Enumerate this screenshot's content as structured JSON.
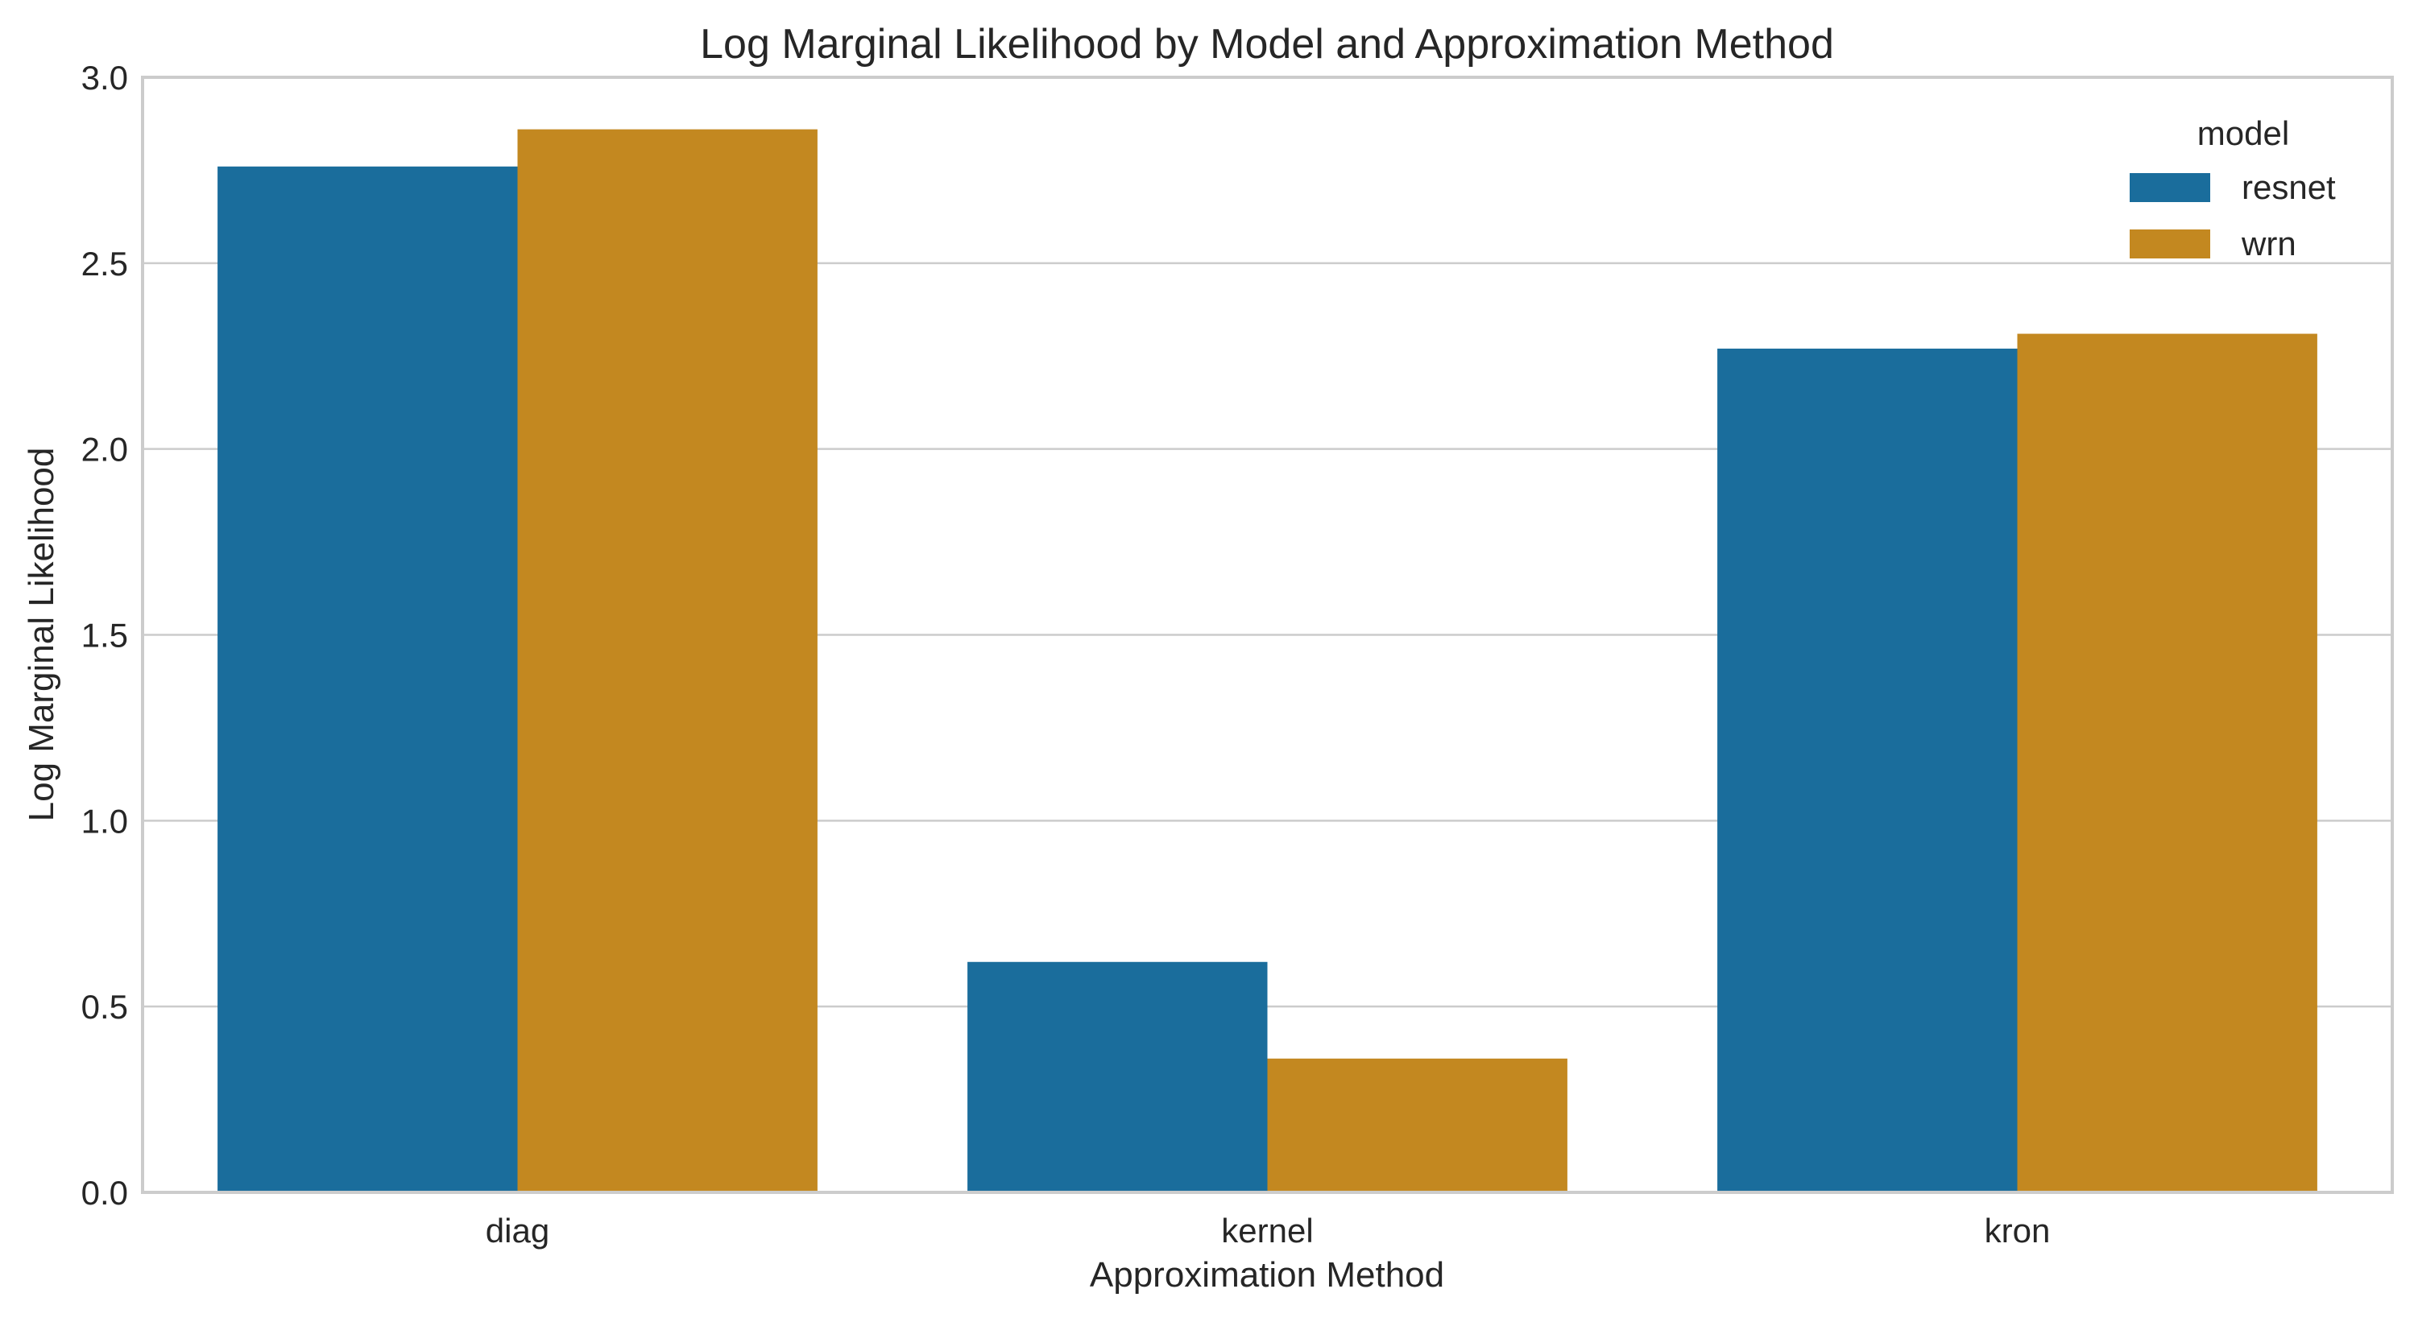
{
  "chart_data": {
    "type": "bar",
    "title": "Log Marginal Likelihood by Model and Approximation Method",
    "xlabel": "Approximation Method",
    "ylabel": "Log Marginal Likelihood",
    "categories": [
      "diag",
      "kernel",
      "kron"
    ],
    "series": [
      {
        "name": "resnet",
        "values": [
          2.76,
          0.62,
          2.27
        ],
        "color": "#1a6d9c"
      },
      {
        "name": "wrn",
        "values": [
          2.86,
          0.36,
          2.31
        ],
        "color": "#c38820"
      }
    ],
    "ylim": [
      0,
      3.0
    ],
    "yticks": [
      "0.0",
      "0.5",
      "1.0",
      "1.5",
      "2.0",
      "2.5",
      "3.0"
    ],
    "grid": "horizontal",
    "legend": {
      "title": "model",
      "placement": "top-right"
    }
  }
}
